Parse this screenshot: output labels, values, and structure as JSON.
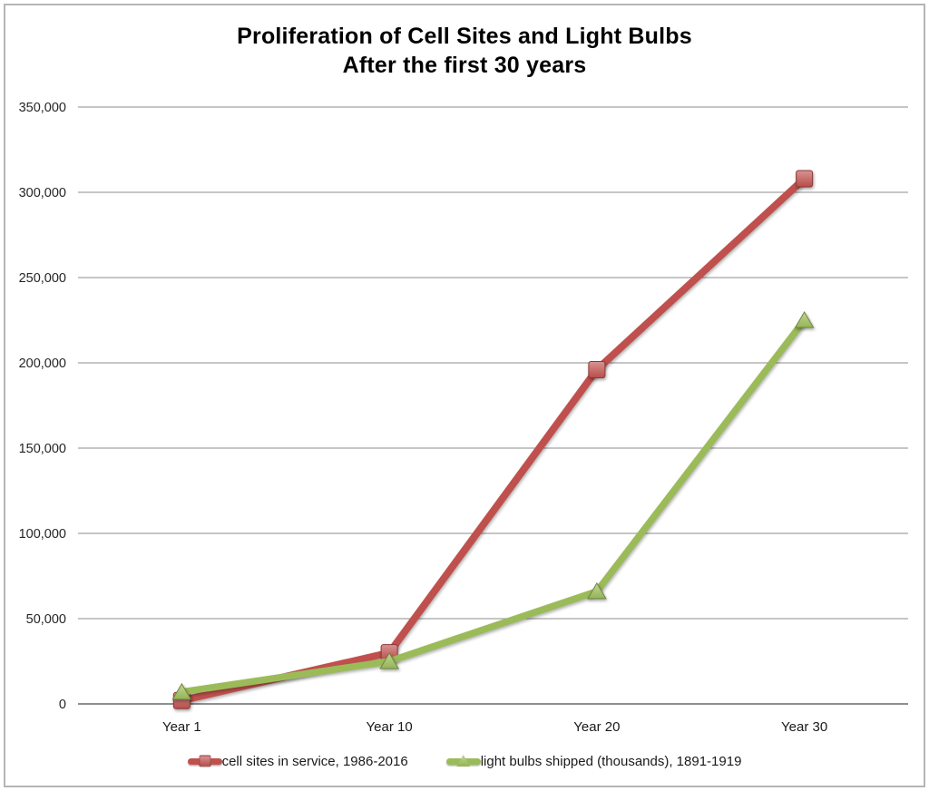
{
  "frame": {
    "border_color": "#b5b5b5"
  },
  "chart_data": {
    "type": "line",
    "title": "Proliferation of Cell Sites and Light Bulbs",
    "subtitle": "After the first 30 years",
    "categories": [
      "Year 1",
      "Year 10",
      "Year 20",
      "Year 30"
    ],
    "series": [
      {
        "id": "cell-sites",
        "name": "cell sites in service, 1986-2016",
        "color": "#C0504D",
        "marker": "square",
        "line_width": 8,
        "values": [
          2000,
          30000,
          196000,
          308000
        ]
      },
      {
        "id": "light-bulbs",
        "name": "light bulbs shipped (thousands), 1891-1919",
        "color": "#9BBB59",
        "marker": "triangle",
        "line_width": 7.5,
        "values": [
          7000,
          25000,
          66000,
          225000
        ]
      }
    ],
    "ylim": [
      0,
      350000
    ],
    "ytick_interval": 50000,
    "ytick_labels": [
      "0",
      "50,000",
      "100,000",
      "150,000",
      "200,000",
      "250,000",
      "300,000",
      "350,000"
    ],
    "xlabel": "",
    "ylabel": "",
    "grid": true,
    "legend_position": "bottom",
    "gridline_color": "#a3a3a3",
    "axis_line_color": "#6a6a6a",
    "tick_label_color": "#262626"
  }
}
